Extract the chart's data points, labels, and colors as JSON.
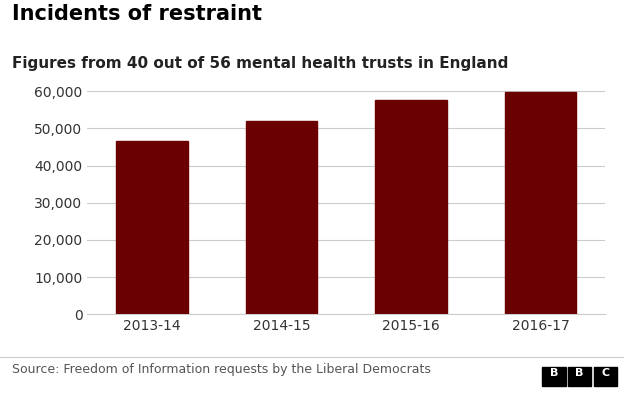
{
  "title": "Incidents of restraint",
  "subtitle": "Figures from 40 out of 56 mental health trusts in England",
  "categories": [
    "2013-14",
    "2014-15",
    "2015-16",
    "2016-17"
  ],
  "values": [
    46500,
    52000,
    57500,
    59700
  ],
  "bar_color": "#6B0000",
  "background_color": "#ffffff",
  "ylim": [
    0,
    65000
  ],
  "yticks": [
    0,
    10000,
    20000,
    30000,
    40000,
    50000,
    60000
  ],
  "source_text": "Source: Freedom of Information requests by the Liberal Democrats",
  "bbc_text": "BBC",
  "title_fontsize": 15,
  "subtitle_fontsize": 11,
  "tick_fontsize": 10,
  "source_fontsize": 9,
  "grid_color": "#cccccc",
  "bar_width": 0.55
}
